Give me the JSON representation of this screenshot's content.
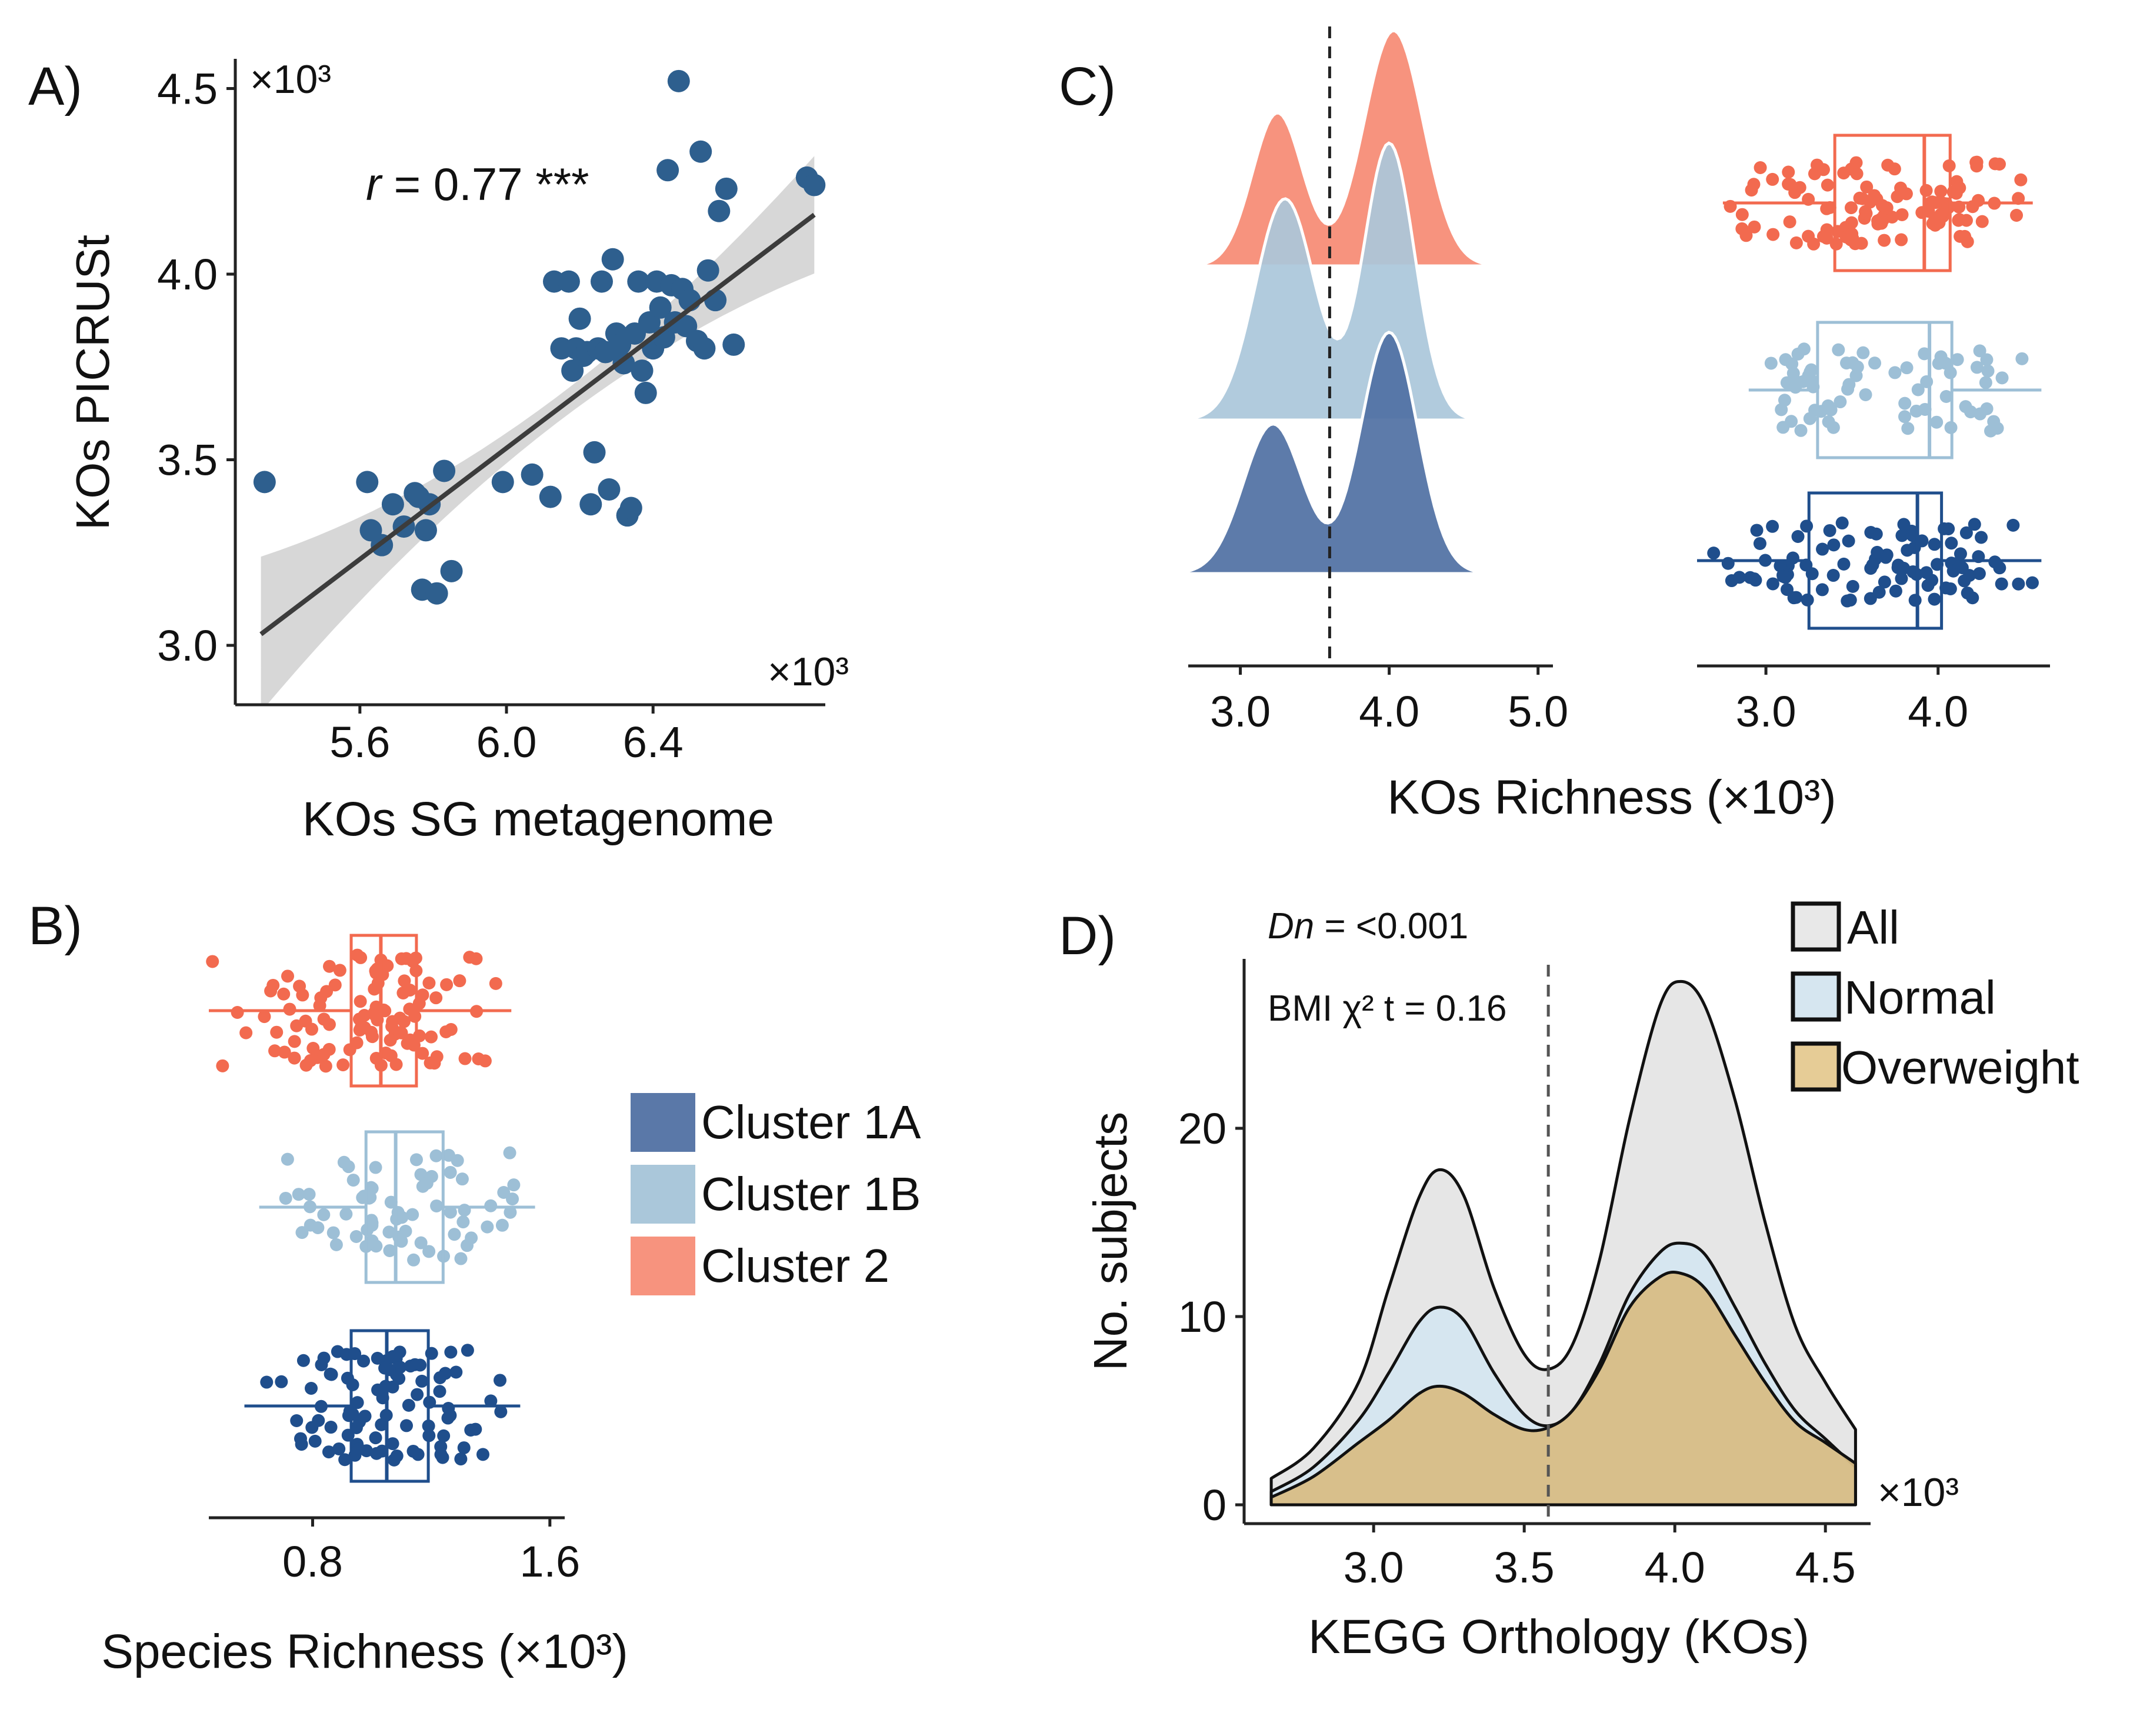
{
  "colors": {
    "c1a": "#1f4e8c",
    "c1a_fill": "#4f70a3",
    "c1b": "#9dbfd6",
    "c1b_fill": "#aac7da",
    "c2": "#f26a4f",
    "c2_fill": "#f7937e",
    "scatter": "#2e5f8e",
    "all_fill": "#e6e6e6",
    "normal_fill": "#d6e6f0",
    "over_fill": "#d8bd85"
  },
  "panels": {
    "a": "A)",
    "b": "B)",
    "c": "C)",
    "d": "D)"
  },
  "legend_clusters": [
    "Cluster 1A",
    "Cluster 1B",
    "Cluster 2"
  ],
  "legend_bmi": [
    "All",
    "Normal",
    "Overweight"
  ],
  "chart_data": [
    {
      "id": "A",
      "type": "scatter",
      "xlabel": "KOs SG metagenome",
      "ylabel": "KOs PICRUSt",
      "x_multiplier": "×10³",
      "y_multiplier": "×10³",
      "xlim": [
        5.26,
        6.87
      ],
      "ylim": [
        2.84,
        4.58
      ],
      "xticks": [
        5.6,
        6.0,
        6.4
      ],
      "xtick_labels": [
        "5.6",
        "6.0",
        "6.4"
      ],
      "yticks": [
        3.0,
        3.5,
        4.0,
        4.5
      ],
      "ytick_labels": [
        "3.0",
        "3.5",
        "4.0",
        "4.5"
      ],
      "annotation_r": "r",
      "annotation_value": " = 0.77 ***",
      "fit": {
        "x0": 5.33,
        "y0": 3.03,
        "x1": 6.84,
        "y1": 4.16
      },
      "points": [
        [
          5.34,
          3.44
        ],
        [
          5.62,
          3.44
        ],
        [
          5.63,
          3.31
        ],
        [
          5.66,
          3.27
        ],
        [
          5.69,
          3.38
        ],
        [
          5.72,
          3.32
        ],
        [
          5.75,
          3.41
        ],
        [
          5.76,
          3.4
        ],
        [
          5.77,
          3.15
        ],
        [
          5.78,
          3.31
        ],
        [
          5.79,
          3.38
        ],
        [
          5.81,
          3.14
        ],
        [
          5.83,
          3.47
        ],
        [
          5.85,
          3.2
        ],
        [
          5.99,
          3.44
        ],
        [
          6.07,
          3.46
        ],
        [
          6.12,
          3.4
        ],
        [
          6.13,
          3.98
        ],
        [
          6.15,
          3.8
        ],
        [
          6.17,
          3.98
        ],
        [
          6.18,
          3.74
        ],
        [
          6.19,
          3.8
        ],
        [
          6.2,
          3.88
        ],
        [
          6.21,
          3.78
        ],
        [
          6.22,
          3.79
        ],
        [
          6.23,
          3.38
        ],
        [
          6.24,
          3.52
        ],
        [
          6.25,
          3.8
        ],
        [
          6.26,
          3.98
        ],
        [
          6.27,
          3.79
        ],
        [
          6.28,
          3.42
        ],
        [
          6.29,
          4.04
        ],
        [
          6.3,
          3.84
        ],
        [
          6.31,
          3.81
        ],
        [
          6.32,
          3.76
        ],
        [
          6.33,
          3.35
        ],
        [
          6.34,
          3.37
        ],
        [
          6.35,
          3.84
        ],
        [
          6.36,
          3.98
        ],
        [
          6.37,
          3.74
        ],
        [
          6.38,
          3.68
        ],
        [
          6.39,
          3.87
        ],
        [
          6.4,
          3.8
        ],
        [
          6.41,
          3.98
        ],
        [
          6.42,
          3.91
        ],
        [
          6.43,
          3.83
        ],
        [
          6.44,
          4.28
        ],
        [
          6.45,
          3.97
        ],
        [
          6.46,
          3.87
        ],
        [
          6.47,
          4.52
        ],
        [
          6.48,
          3.96
        ],
        [
          6.49,
          3.86
        ],
        [
          6.5,
          3.93
        ],
        [
          6.52,
          3.82
        ],
        [
          6.53,
          4.33
        ],
        [
          6.54,
          3.8
        ],
        [
          6.55,
          4.01
        ],
        [
          6.57,
          3.93
        ],
        [
          6.58,
          4.17
        ],
        [
          6.6,
          4.23
        ],
        [
          6.62,
          3.81
        ],
        [
          6.82,
          4.26
        ],
        [
          6.84,
          4.24
        ]
      ]
    },
    {
      "id": "B",
      "type": "box-jitter",
      "xlabel": "Species Richness (×10³)",
      "xlim": [
        0.45,
        1.65
      ],
      "xticks": [
        0.8,
        1.6
      ],
      "xtick_labels": [
        "0.8",
        "1.6"
      ],
      "series": [
        {
          "name": "Cluster 2",
          "q1": 0.93,
          "median": 1.03,
          "q3": 1.15,
          "wlo": 0.45,
          "whi": 1.47,
          "n": 110,
          "seed": 11
        },
        {
          "name": "Cluster 1B",
          "q1": 0.98,
          "median": 1.08,
          "q3": 1.24,
          "wlo": 0.62,
          "whi": 1.55,
          "n": 70,
          "seed": 23
        },
        {
          "name": "Cluster 1A",
          "q1": 0.93,
          "median": 1.05,
          "q3": 1.19,
          "wlo": 0.57,
          "whi": 1.5,
          "n": 95,
          "seed": 37
        }
      ]
    },
    {
      "id": "C-density",
      "type": "ridgeline",
      "xlabel": "KOs Richness (×10³)",
      "xlim": [
        2.65,
        5.1
      ],
      "xticks": [
        3.0,
        4.0,
        5.0
      ],
      "xtick_labels": [
        "3.0",
        "4.0",
        "5.0"
      ],
      "vline": 3.6,
      "series": [
        {
          "name": "Cluster 2",
          "components": [
            [
              3.25,
              0.17,
              0.65
            ],
            [
              4.03,
              0.2,
              1.0
            ]
          ]
        },
        {
          "name": "Cluster 1B",
          "components": [
            [
              3.3,
              0.2,
              0.8
            ],
            [
              4.0,
              0.17,
              1.0
            ]
          ]
        },
        {
          "name": "Cluster 1A",
          "components": [
            [
              3.22,
              0.2,
              0.62
            ],
            [
              4.0,
              0.19,
              1.0
            ]
          ]
        }
      ]
    },
    {
      "id": "C-box",
      "type": "box-jitter",
      "xlim": [
        2.6,
        4.65
      ],
      "xticks": [
        3.0,
        4.0
      ],
      "xtick_labels": [
        "3.0",
        "4.0"
      ],
      "series": [
        {
          "name": "Cluster 2",
          "q1": 3.4,
          "median": 3.92,
          "q3": 4.07,
          "wlo": 2.75,
          "whi": 4.55,
          "n": 110,
          "seed": 51
        },
        {
          "name": "Cluster 1B",
          "q1": 3.3,
          "median": 3.95,
          "q3": 4.08,
          "wlo": 2.9,
          "whi": 4.6,
          "n": 70,
          "seed": 63
        },
        {
          "name": "Cluster 1A",
          "q1": 3.25,
          "median": 3.88,
          "q3": 4.02,
          "wlo": 2.6,
          "whi": 4.6,
          "n": 95,
          "seed": 77
        }
      ]
    },
    {
      "id": "D",
      "type": "area",
      "xlabel": "KEGG Orthology (KOs)",
      "ylabel": "No. subjects",
      "x_multiplier": "×10³",
      "xlim": [
        2.57,
        4.65
      ],
      "ylim": [
        -1,
        29
      ],
      "xticks": [
        3.0,
        3.5,
        4.0,
        4.5
      ],
      "xtick_labels": [
        "3.0",
        "3.5",
        "4.0",
        "4.5"
      ],
      "yticks": [
        0,
        10,
        20
      ],
      "ytick_labels": [
        "0",
        "10",
        "20"
      ],
      "vline": 3.58,
      "annotation_dn_label": "Dn",
      "annotation_dn_value": " = <0.001",
      "annotation_bmi": "BMI χ² t = 0.16",
      "x": [
        2.66,
        2.8,
        2.95,
        3.05,
        3.15,
        3.22,
        3.3,
        3.4,
        3.5,
        3.58,
        3.66,
        3.75,
        3.85,
        3.95,
        4.02,
        4.1,
        4.2,
        4.3,
        4.4,
        4.5,
        4.6
      ],
      "series": [
        {
          "name": "All",
          "values": [
            1.4,
            3.0,
            6.5,
            11.5,
            16.3,
            17.8,
            16.4,
            11.5,
            8.0,
            7.2,
            8.5,
            13.0,
            20.5,
            26.5,
            27.8,
            26.5,
            21.5,
            15.0,
            9.5,
            6.5,
            4.0
          ]
        },
        {
          "name": "Normal",
          "values": [
            0.7,
            2.0,
            4.5,
            7.0,
            9.7,
            10.5,
            9.8,
            7.0,
            4.8,
            4.2,
            5.0,
            7.5,
            11.2,
            13.4,
            13.9,
            13.3,
            10.5,
            7.5,
            5.0,
            3.5,
            2.0
          ]
        },
        {
          "name": "Overweight",
          "values": [
            0.4,
            1.5,
            3.3,
            4.5,
            5.9,
            6.3,
            5.9,
            4.8,
            4.0,
            4.1,
            5.0,
            7.2,
            10.5,
            12.1,
            12.3,
            11.5,
            9.0,
            6.5,
            4.4,
            3.3,
            2.2
          ]
        }
      ]
    }
  ]
}
